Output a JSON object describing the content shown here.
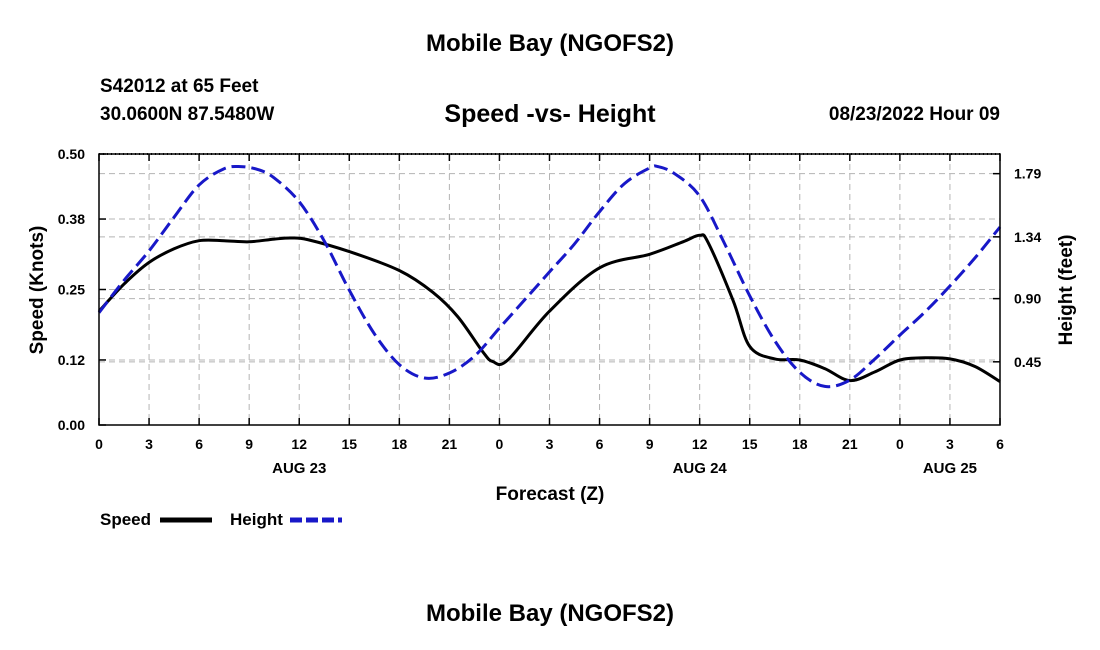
{
  "header": {
    "title": "Mobile Bay (NGOFS2)",
    "station": "S42012 at 65 Feet",
    "coordinates": "30.0600N  87.5480W",
    "datetime": "08/23/2022 Hour 09"
  },
  "footer": {
    "title": "Mobile Bay (NGOFS2)"
  },
  "colors": {
    "speed": "#000000",
    "height": "#1818c8",
    "grid": "#b4b4b4"
  },
  "chart_data": {
    "type": "line",
    "title": "Speed -vs- Height",
    "xlabel": "Forecast (Z)",
    "ylabel_left": "Speed (Knots)",
    "ylabel_right": "Height (feet)",
    "x_unit": "forecast hour from 00Z Aug 23",
    "xlim": [
      0,
      54
    ],
    "ylim_left": [
      0,
      0.5
    ],
    "ylim_right": [
      0.0,
      1.93
    ],
    "x_ticks": [
      0,
      3,
      6,
      9,
      12,
      15,
      18,
      21,
      24,
      27,
      30,
      33,
      36,
      39,
      42,
      45,
      48,
      51,
      54
    ],
    "x_tick_labels": [
      "0",
      "3",
      "6",
      "9",
      "12",
      "15",
      "18",
      "21",
      "0",
      "3",
      "6",
      "9",
      "12",
      "15",
      "18",
      "21",
      "0",
      "3",
      "6"
    ],
    "date_labels": [
      {
        "x": 12,
        "label": "AUG 23"
      },
      {
        "x": 36,
        "label": "AUG 24"
      },
      {
        "x": 51,
        "label": "AUG 25"
      }
    ],
    "left_ticks": [
      0.0,
      0.12,
      0.25,
      0.38,
      0.5
    ],
    "left_tick_labels": [
      "0.00",
      "0.12",
      "0.25",
      "0.38",
      "0.50"
    ],
    "right_ticks": [
      0.45,
      0.9,
      1.34,
      1.79
    ],
    "right_tick_labels": [
      "0.45",
      "0.90",
      "1.34",
      "1.79"
    ],
    "grid": true,
    "legend": [
      {
        "name": "Speed",
        "style": "solid"
      },
      {
        "name": "Height",
        "style": "dashed"
      }
    ],
    "series": [
      {
        "name": "Speed",
        "axis": "left",
        "x": [
          0,
          1.5,
          3,
          4.5,
          6,
          7.5,
          9,
          10.5,
          11.5,
          12.5,
          15,
          18,
          20,
          21.5,
          23,
          23.6,
          24.5,
          27,
          30,
          33,
          35,
          36,
          36.5,
          38,
          39,
          40.5,
          42,
          43.5,
          45,
          46.5,
          48,
          49.5,
          51,
          52.5,
          54
        ],
        "y": [
          0.21,
          0.26,
          0.3,
          0.325,
          0.34,
          0.34,
          0.338,
          0.343,
          0.345,
          0.342,
          0.32,
          0.285,
          0.245,
          0.2,
          0.135,
          0.117,
          0.12,
          0.21,
          0.29,
          0.315,
          0.338,
          0.35,
          0.337,
          0.23,
          0.145,
          0.122,
          0.12,
          0.104,
          0.082,
          0.098,
          0.12,
          0.124,
          0.122,
          0.108,
          0.08
        ]
      },
      {
        "name": "Height",
        "axis": "right",
        "x": [
          0,
          1.5,
          3,
          4.5,
          6,
          7.5,
          8.5,
          9.5,
          10.5,
          12,
          13.5,
          15,
          16.5,
          18,
          19.5,
          21,
          22.5,
          24,
          25.5,
          27,
          28.5,
          30,
          31.5,
          33,
          33.5,
          34.5,
          36,
          37.5,
          39,
          40.5,
          42,
          43.5,
          45,
          46.5,
          48,
          49.5,
          51,
          52.5,
          54
        ],
        "y": [
          0.8,
          1.03,
          1.24,
          1.48,
          1.71,
          1.825,
          1.84,
          1.82,
          1.76,
          1.59,
          1.31,
          0.96,
          0.65,
          0.43,
          0.335,
          0.37,
          0.49,
          0.69,
          0.89,
          1.09,
          1.29,
          1.52,
          1.72,
          1.83,
          1.84,
          1.79,
          1.63,
          1.29,
          0.92,
          0.6,
          0.375,
          0.275,
          0.32,
          0.47,
          0.64,
          0.805,
          0.99,
          1.19,
          1.41
        ]
      }
    ]
  }
}
